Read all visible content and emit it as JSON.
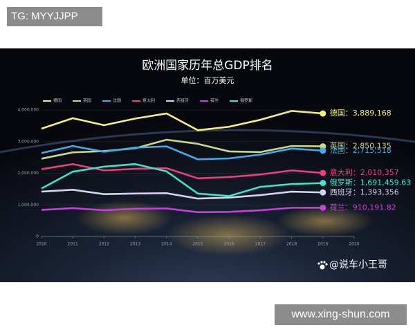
{
  "top_badge": "TG: MYYJJPP",
  "chart_data": {
    "type": "line",
    "title": "欧洲国家历年总GDP排名",
    "subtitle": "单位：百万美元",
    "x": [
      2010,
      2011,
      2012,
      2013,
      2014,
      2015,
      2016,
      2017,
      2018,
      2019
    ],
    "xlim": [
      2010,
      2020
    ],
    "xticks": [
      2010,
      2011,
      2012,
      2013,
      2014,
      2015,
      2016,
      2017,
      2018,
      2019,
      2020
    ],
    "ylim": [
      0,
      4000000
    ],
    "yticks": [
      0,
      {
        "value": 1000000,
        "label": "1,000,000"
      },
      {
        "value": 2000000,
        "label": "2,000,000"
      },
      {
        "value": 3000000,
        "label": "3,000,000"
      },
      {
        "value": 4000000,
        "label": "4,000,000"
      }
    ],
    "grid": true,
    "legend": "top-left",
    "label_separator": "：",
    "series": [
      {
        "name": "德国",
        "color": "#f4f07c",
        "values": [
          3410000,
          3740000,
          3520000,
          3730000,
          3890000,
          3360000,
          3470000,
          3690000,
          3970000,
          3889168
        ],
        "value_labels": [
          null,
          null,
          null,
          null,
          null,
          null,
          null,
          null,
          null,
          "3,889,168"
        ]
      },
      {
        "name": "英国",
        "color": "#c9d88a",
        "values": [
          2460000,
          2660000,
          2700000,
          2790000,
          3060000,
          2930000,
          2690000,
          2670000,
          2860000,
          2850135
        ],
        "value_labels": [
          null,
          null,
          null,
          null,
          null,
          null,
          null,
          null,
          null,
          "2,850,135"
        ]
      },
      {
        "name": "法国",
        "color": "#40aee6",
        "values": [
          2640000,
          2860000,
          2680000,
          2810000,
          2850000,
          2440000,
          2470000,
          2590000,
          2780000,
          2715518
        ],
        "value_labels": [
          null,
          null,
          null,
          null,
          null,
          null,
          null,
          null,
          null,
          "2,715,518"
        ]
      },
      {
        "name": "意大利",
        "color": "#e8427c",
        "values": [
          2130000,
          2290000,
          2090000,
          2140000,
          2160000,
          1840000,
          1880000,
          1960000,
          2090000,
          2010357
        ],
        "value_labels": [
          null,
          null,
          null,
          null,
          null,
          null,
          null,
          null,
          null,
          "2,010,357"
        ]
      },
      {
        "name": "西班牙",
        "color": "#d9d2f2",
        "values": [
          1420000,
          1480000,
          1340000,
          1360000,
          1370000,
          1200000,
          1230000,
          1310000,
          1420000,
          1393356
        ],
        "value_labels": [
          null,
          null,
          null,
          null,
          null,
          null,
          null,
          null,
          null,
          "1,393,356"
        ]
      },
      {
        "name": "荷兰",
        "color": "#c443d6",
        "values": [
          840000,
          900000,
          830000,
          880000,
          890000,
          770000,
          780000,
          830000,
          910000,
          910191.82
        ],
        "value_labels": [
          null,
          null,
          null,
          null,
          null,
          null,
          null,
          null,
          null,
          "910,191.82"
        ]
      },
      {
        "name": "俄罗斯",
        "color": "#40e2c8",
        "values": [
          1520000,
          2050000,
          2210000,
          2290000,
          2060000,
          1360000,
          1280000,
          1570000,
          1660000,
          1691459.63
        ],
        "value_labels": [
          null,
          null,
          null,
          null,
          null,
          null,
          null,
          null,
          null,
          "1,691,459.63"
        ]
      }
    ]
  },
  "watermark": "@说车小王哥",
  "bottom_badge": "www.xing-shun.com"
}
